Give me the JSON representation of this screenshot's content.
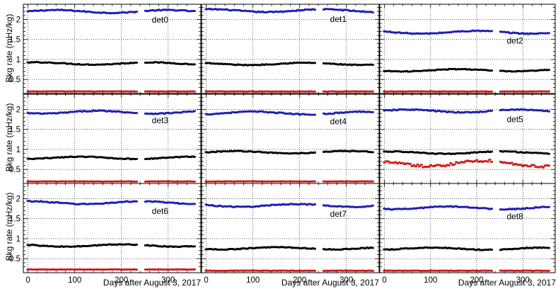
{
  "chart_data": {
    "type": "scatter",
    "figure_title": "",
    "xlabel": "Days after August 3, 2017",
    "ylabel": "Bkg rate (mHz/kg)",
    "xlim": [
      -10,
      370
    ],
    "ylim": [
      0.15,
      2.38
    ],
    "x_ticks": [
      0,
      100,
      200,
      300
    ],
    "y_ticks": [
      0.5,
      1,
      1.5,
      2
    ],
    "y_tick_labels": [
      "0.5",
      "1",
      "1.5",
      "2"
    ],
    "grid": "dotted",
    "series_colors": {
      "high": "#1c1cb4",
      "mid": "#000000",
      "low": "#cc1c1c"
    },
    "x_range_days": [
      0,
      358
    ],
    "panels": [
      {
        "label": "det0",
        "high": 2.2,
        "mid": 0.9,
        "low": 0.2
      },
      {
        "label": "det1",
        "high": 2.22,
        "mid": 0.89,
        "low": 0.2
      },
      {
        "label": "det2",
        "high": 1.68,
        "mid": 0.73,
        "low": 0.2
      },
      {
        "label": "det3",
        "high": 1.93,
        "mid": 0.79,
        "low": 0.2
      },
      {
        "label": "det4",
        "high": 1.91,
        "mid": 0.93,
        "low": 0.2
      },
      {
        "label": "det5",
        "high": 1.96,
        "mid": 0.92,
        "low": 0.65
      },
      {
        "label": "det6",
        "high": 1.9,
        "mid": 0.83,
        "low": 0.23
      },
      {
        "label": "det7",
        "high": 1.83,
        "mid": 0.76,
        "low": 0.2
      },
      {
        "label": "det8",
        "high": 1.77,
        "mid": 0.75,
        "low": 0.2
      }
    ]
  }
}
